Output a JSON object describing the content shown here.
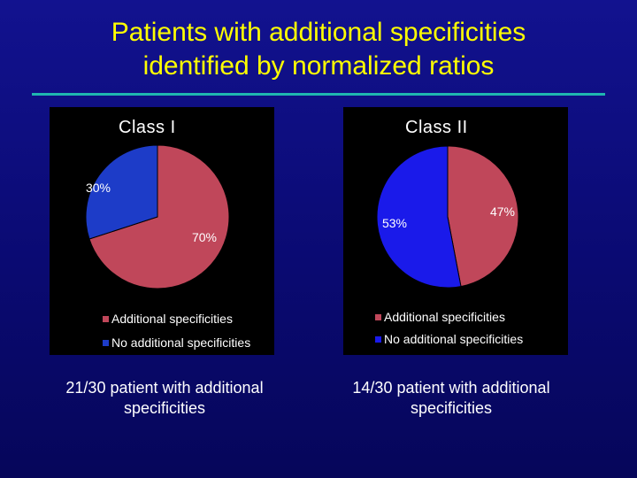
{
  "slide": {
    "title_line1": "Patients with additional specificities",
    "title_line2": "identified by normalized ratios",
    "title_color": "#ffff00",
    "background_color": "#10108a",
    "divider_color": "#1fb6b0"
  },
  "chart_data": [
    {
      "type": "pie",
      "title": "Class I",
      "slices": [
        {
          "name": "Additional specificities",
          "value": 70,
          "label": "70%",
          "color": "#c0475a"
        },
        {
          "name": "No additional specificities",
          "value": 30,
          "label": "30%",
          "color": "#1d3cc8"
        }
      ],
      "legend": [
        "Additional specificities",
        "No additional specificities"
      ],
      "legend_position": "bottom",
      "caption_line1": "21/30 patient with additional",
      "caption_line2": "specificities"
    },
    {
      "type": "pie",
      "title": "Class II",
      "slices": [
        {
          "name": "Additional specificities",
          "value": 47,
          "label": "47%",
          "color": "#c0475a"
        },
        {
          "name": "No additional specificities",
          "value": 53,
          "label": "53%",
          "color": "#1a1aea"
        }
      ],
      "legend": [
        "Additional specificities",
        "No additional specificities"
      ],
      "legend_position": "bottom",
      "caption_line1": "14/30 patient with additional",
      "caption_line2": "specificities"
    }
  ]
}
